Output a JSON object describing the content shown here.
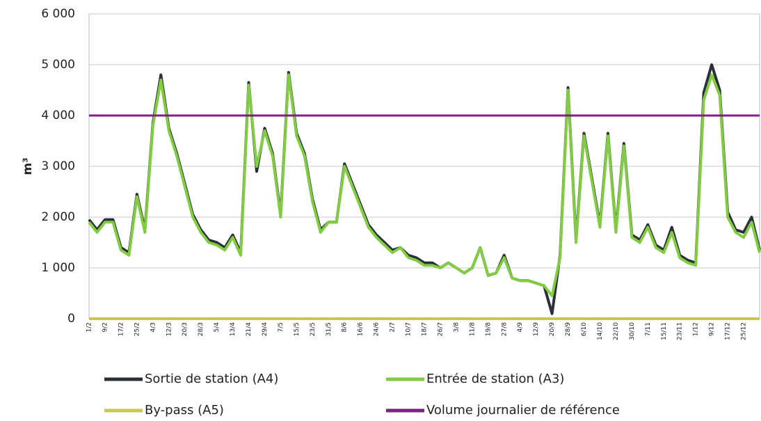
{
  "chart_data": {
    "type": "line",
    "ylabel": "m³",
    "categories": [
      "1/2",
      null,
      "9/2",
      null,
      "17/2",
      null,
      "25/2",
      null,
      "4/3",
      null,
      "12/3",
      null,
      "20/3",
      null,
      "28/3",
      null,
      "5/4",
      null,
      "13/4",
      null,
      "21/4",
      null,
      "29/4",
      null,
      "7/5",
      null,
      "15/5",
      null,
      "23/5",
      null,
      "31/5",
      null,
      "8/6",
      null,
      "16/6",
      null,
      "24/6",
      null,
      "2/7",
      null,
      "10/7",
      null,
      "18/7",
      null,
      "26/7",
      null,
      "3/8",
      null,
      "11/8",
      null,
      "19/8",
      null,
      "27/8",
      null,
      "4/9",
      null,
      "12/9",
      null,
      "20/9",
      null,
      "28/9",
      null,
      "6/10",
      null,
      "14/10",
      null,
      "22/10",
      null,
      "30/10",
      null,
      "7/11",
      null,
      "15/11",
      null,
      "23/11",
      null,
      "1/12",
      null,
      "9/12",
      null,
      "17/12",
      null,
      "25/12",
      null,
      null
    ],
    "series": [
      {
        "name": "Sortie de station (A4)",
        "color": "#2b2f3a",
        "values": [
          1950,
          1750,
          1950,
          1950,
          1400,
          1300,
          2450,
          1750,
          3850,
          4800,
          3750,
          3250,
          2650,
          2050,
          1750,
          1550,
          1500,
          1400,
          1650,
          1300,
          4650,
          2900,
          3750,
          3250,
          2050,
          4850,
          3650,
          3250,
          2350,
          1750,
          1900,
          1900,
          3050,
          2650,
          2250,
          1850,
          1650,
          1500,
          1350,
          1400,
          1250,
          1200,
          1100,
          1100,
          1000,
          1100,
          1000,
          900,
          1000,
          1400,
          850,
          900,
          1250,
          800,
          750,
          750,
          700,
          650,
          100,
          1250,
          4550,
          1550,
          3650,
          2750,
          1850,
          3650,
          1750,
          3450,
          1650,
          1550,
          1850,
          1450,
          1350,
          1800,
          1250,
          1150,
          1100,
          4450,
          5000,
          4500,
          2100,
          1750,
          1700,
          2000,
          1350
        ]
      },
      {
        "name": "Entrée de station (A3)",
        "color": "#82cc44",
        "values": [
          1900,
          1700,
          1900,
          1900,
          1350,
          1250,
          2400,
          1700,
          3800,
          4700,
          3700,
          3200,
          2600,
          2000,
          1700,
          1500,
          1450,
          1350,
          1600,
          1250,
          4600,
          3000,
          3700,
          3200,
          2000,
          4800,
          3600,
          3200,
          2300,
          1700,
          1900,
          1900,
          3000,
          2600,
          2200,
          1800,
          1600,
          1450,
          1300,
          1400,
          1200,
          1150,
          1050,
          1050,
          1000,
          1100,
          1000,
          900,
          1000,
          1400,
          850,
          900,
          1200,
          800,
          750,
          750,
          700,
          650,
          450,
          1200,
          4500,
          1500,
          3600,
          2700,
          1800,
          3600,
          1700,
          3400,
          1600,
          1500,
          1800,
          1400,
          1300,
          1700,
          1200,
          1100,
          1050,
          4300,
          4800,
          4400,
          2000,
          1700,
          1600,
          1900,
          1300
        ]
      },
      {
        "name": "By-pass (A5)",
        "color": "#c9c655",
        "values": [
          0,
          0,
          0,
          0,
          0,
          0,
          0,
          0,
          0,
          0,
          0,
          0,
          0,
          0,
          0,
          0,
          0,
          0,
          0,
          0,
          0,
          0,
          0,
          0,
          0,
          0,
          0,
          0,
          0,
          0,
          0,
          0,
          0,
          0,
          0,
          0,
          0,
          0,
          0,
          0,
          0,
          0,
          0,
          0,
          0,
          0,
          0,
          0,
          0,
          0,
          0,
          0,
          0,
          0,
          0,
          0,
          0,
          0,
          0,
          0,
          0,
          0,
          0,
          0,
          0,
          0,
          0,
          0,
          0,
          0,
          0,
          0,
          0,
          0,
          0,
          0,
          0,
          0,
          0,
          0,
          0,
          0,
          0,
          0,
          0
        ]
      },
      {
        "name": "Volume journalier de référence",
        "color": "#7b2183",
        "values": [
          4000,
          4000,
          4000,
          4000,
          4000,
          4000,
          4000,
          4000,
          4000,
          4000,
          4000,
          4000,
          4000,
          4000,
          4000,
          4000,
          4000,
          4000,
          4000,
          4000,
          4000,
          4000,
          4000,
          4000,
          4000,
          4000,
          4000,
          4000,
          4000,
          4000,
          4000,
          4000,
          4000,
          4000,
          4000,
          4000,
          4000,
          4000,
          4000,
          4000,
          4000,
          4000,
          4000,
          4000,
          4000,
          4000,
          4000,
          4000,
          4000,
          4000,
          4000,
          4000,
          4000,
          4000,
          4000,
          4000,
          4000,
          4000,
          4000,
          4000,
          4000,
          4000,
          4000,
          4000,
          4000,
          4000,
          4000,
          4000,
          4000,
          4000,
          4000,
          4000,
          4000,
          4000,
          4000,
          4000,
          4000,
          4000,
          4000,
          4000,
          4000,
          4000,
          4000,
          4000,
          4000
        ]
      }
    ],
    "ylim": [
      0,
      6000
    ],
    "yticks": [
      0,
      {
        "value": 1000,
        "label": "1 000"
      },
      {
        "value": 2000,
        "label": "2 000"
      },
      {
        "value": 3000,
        "label": "3 000"
      },
      {
        "value": 4000,
        "label": "4 000"
      },
      {
        "value": 5000,
        "label": "5 000"
      },
      {
        "value": 6000,
        "label": "6 000"
      }
    ],
    "grid": true
  }
}
